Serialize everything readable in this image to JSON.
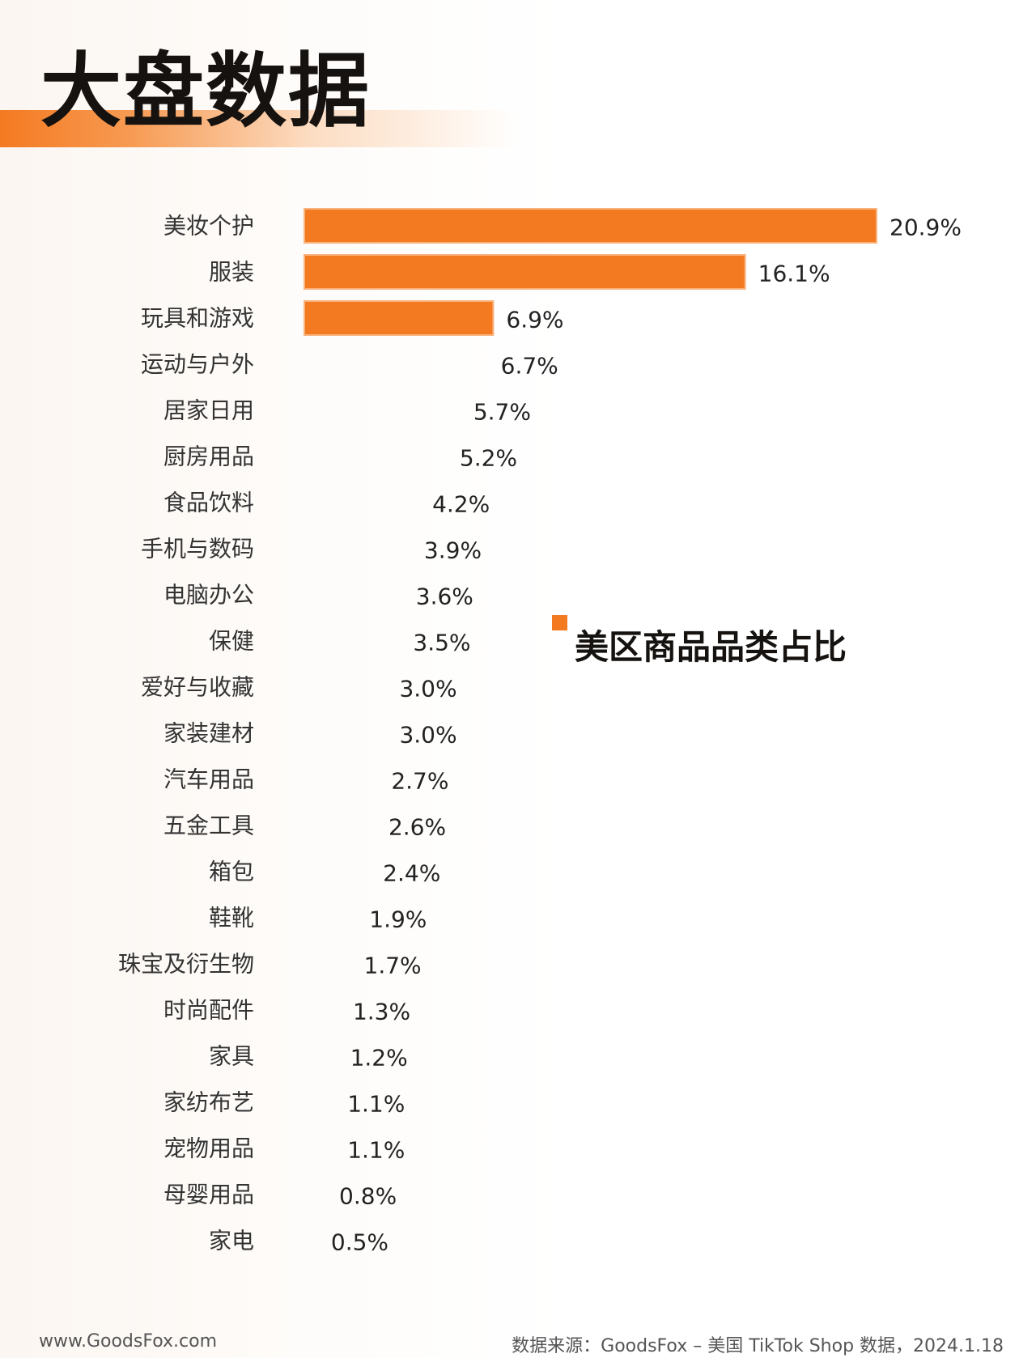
{
  "header": {
    "title": "大盘数据"
  },
  "footer": {
    "site": "www.GoodsFox.com",
    "source": "数据来源：GoodsFox – 美国 TikTok Shop 数据，2024.1.18"
  },
  "colors": {
    "accent": "#f47a21",
    "text": "#15120f",
    "muted": "#555555"
  },
  "chart_data": {
    "type": "bar",
    "orientation": "horizontal",
    "legend_position": "right",
    "series": [
      {
        "name": "美区商品品类占比",
        "values": [
          20.9,
          16.1,
          6.9,
          6.7,
          5.7,
          5.2,
          4.2,
          3.9,
          3.6,
          3.5,
          3.0,
          3.0,
          2.7,
          2.6,
          2.4,
          1.9,
          1.7,
          1.3,
          1.2,
          1.1,
          1.1,
          0.8,
          0.5
        ],
        "labels": [
          "20.9%",
          "16.1%",
          "6.9%",
          "6.7%",
          "5.7%",
          "5.2%",
          "4.2%",
          "3.9%",
          "3.6%",
          "3.5%",
          "3.0%",
          "3.0%",
          "2.7%",
          "2.6%",
          "2.4%",
          "1.9%",
          "1.7%",
          "1.3%",
          "1.2%",
          "1.1%",
          "1.1%",
          "0.8%",
          "0.5%"
        ],
        "bars_drawn_count": 3
      }
    ],
    "categories": [
      "美妆个护",
      "服装",
      "玩具和游戏",
      "运动与户外",
      "居家日用",
      "厨房用品",
      "食品饮料",
      "手机与数码",
      "电脑办公",
      "保健",
      "爱好与收藏",
      "家装建材",
      "汽车用品",
      "五金工具",
      "箱包",
      "鞋靴",
      "珠宝及衍生物",
      "时尚配件",
      "家具",
      "家纺布艺",
      "宠物用品",
      "母婴用品",
      "家电"
    ],
    "xlim": [
      0,
      20.9
    ],
    "grid": false,
    "title": "",
    "xlabel": "",
    "ylabel": ""
  }
}
